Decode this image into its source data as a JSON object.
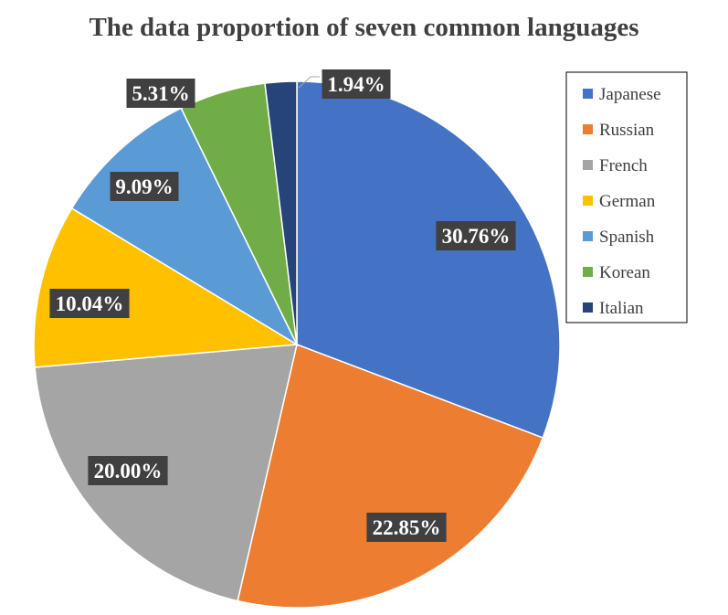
{
  "chart_data": {
    "type": "pie",
    "title": "The data proportion of seven common languages",
    "legend_position": "right",
    "categories": [
      "Japanese",
      "Russian",
      "French",
      "German",
      "Spanish",
      "Korean",
      "Italian"
    ],
    "values": [
      30.76,
      22.85,
      20.0,
      10.04,
      9.09,
      5.31,
      1.94
    ],
    "labels": [
      "30.76%",
      "22.85%",
      "20.00%",
      "10.04%",
      "9.09%",
      "5.31%",
      "1.94%"
    ],
    "colors": [
      "#4472C4",
      "#ED7D31",
      "#A5A5A5",
      "#FFC000",
      "#5B9BD5",
      "#70AD47",
      "#264478"
    ]
  }
}
